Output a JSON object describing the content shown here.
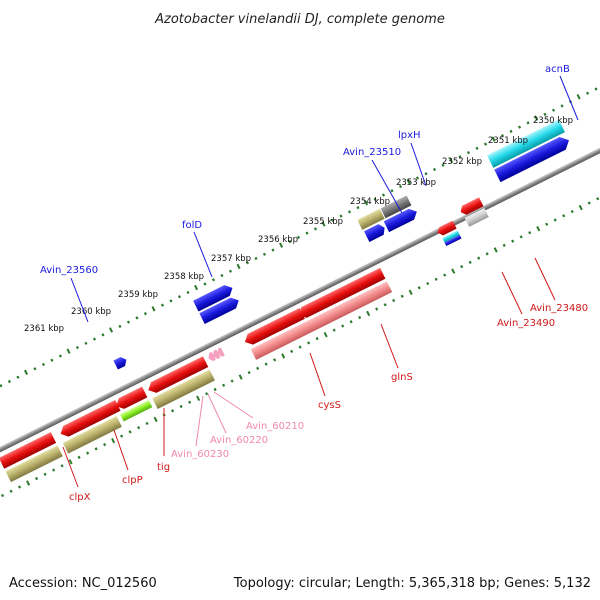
{
  "title": "Azotobacter vinelandii DJ, complete genome",
  "accession": "Accession: NC_012560",
  "summary": "Topology: circular; Length: 5,365,318 bp; Genes: 5,132",
  "kbp_ticks": [
    "2350 kbp",
    "2351 kbp",
    "2352 kbp",
    "2353 kbp",
    "2354 kbp",
    "2355 kbp",
    "2356 kbp",
    "2357 kbp",
    "2358 kbp",
    "2359 kbp",
    "2360 kbp",
    "2361 kbp"
  ],
  "gene_labels_upper": [
    {
      "name": "acnB",
      "color": "#1a1adc"
    },
    {
      "name": "lpxH",
      "color": "#1a1adc"
    },
    {
      "name": "Avin_23510",
      "color": "#1a1adc"
    },
    {
      "name": "folD",
      "color": "#1a1adc"
    },
    {
      "name": "Avin_23560",
      "color": "#1a1adc"
    }
  ],
  "gene_labels_lower": [
    {
      "name": "Avin_23480",
      "color": "#d01818"
    },
    {
      "name": "Avin_23490",
      "color": "#d01818"
    },
    {
      "name": "glnS",
      "color": "#d01818"
    },
    {
      "name": "cysS",
      "color": "#d01818"
    },
    {
      "name": "Avin_60210",
      "color": "#f08aa8"
    },
    {
      "name": "Avin_60220",
      "color": "#f08aa8"
    },
    {
      "name": "Avin_60230",
      "color": "#f08aa8"
    },
    {
      "name": "tig",
      "color": "#d01818"
    },
    {
      "name": "clpP",
      "color": "#d01818"
    },
    {
      "name": "clpX",
      "color": "#d01818"
    }
  ],
  "colors": {
    "forward_cds": "#1a1adc",
    "reverse_cds": "#e81010",
    "reverse_cds_light": "#f28a8a",
    "khaki_feature": "#b8b06a",
    "cyan_feature": "#22d8e8",
    "gray_feature": "#777777",
    "pink_feature": "#f6a0c0",
    "green_feature": "#88ee22",
    "backbone": "#8a8a8a",
    "ticks": "#2a7a2a"
  }
}
